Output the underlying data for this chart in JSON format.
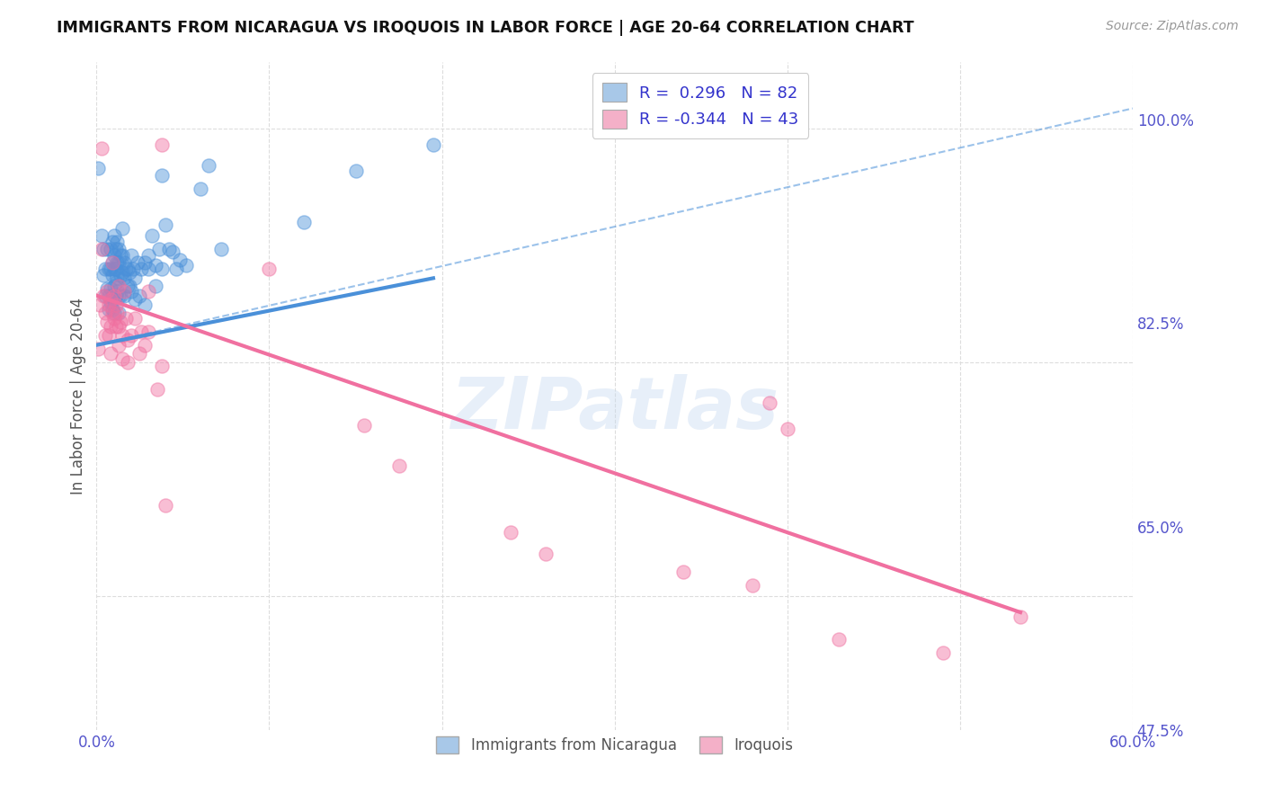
{
  "title": "IMMIGRANTS FROM NICARAGUA VS IROQUOIS IN LABOR FORCE | AGE 20-64 CORRELATION CHART",
  "source_text": "Source: ZipAtlas.com",
  "ylabel_label": "In Labor Force | Age 20-64",
  "x_min": 0.0,
  "x_max": 0.6,
  "y_min": 0.55,
  "y_max": 1.05,
  "x_ticks": [
    0.0,
    0.1,
    0.2,
    0.3,
    0.4,
    0.5,
    0.6
  ],
  "y_tick_labels_right": [
    "100.0%",
    "82.5%",
    "65.0%",
    "47.5%"
  ],
  "y_ticks_right": [
    1.0,
    0.825,
    0.65,
    0.475
  ],
  "watermark": "ZIPatlas",
  "blue_color": "#4a90d9",
  "pink_color": "#f070a0",
  "blue_scatter": [
    [
      0.001,
      0.97
    ],
    [
      0.003,
      0.92
    ],
    [
      0.004,
      0.91
    ],
    [
      0.004,
      0.89
    ],
    [
      0.005,
      0.895
    ],
    [
      0.005,
      0.875
    ],
    [
      0.006,
      0.91
    ],
    [
      0.006,
      0.88
    ],
    [
      0.007,
      0.895
    ],
    [
      0.007,
      0.875
    ],
    [
      0.007,
      0.865
    ],
    [
      0.008,
      0.91
    ],
    [
      0.008,
      0.895
    ],
    [
      0.008,
      0.88
    ],
    [
      0.008,
      0.87
    ],
    [
      0.009,
      0.915
    ],
    [
      0.009,
      0.9
    ],
    [
      0.009,
      0.89
    ],
    [
      0.009,
      0.875
    ],
    [
      0.009,
      0.865
    ],
    [
      0.01,
      0.92
    ],
    [
      0.01,
      0.905
    ],
    [
      0.01,
      0.895
    ],
    [
      0.01,
      0.882
    ],
    [
      0.01,
      0.872
    ],
    [
      0.01,
      0.862
    ],
    [
      0.011,
      0.91
    ],
    [
      0.011,
      0.895
    ],
    [
      0.011,
      0.885
    ],
    [
      0.011,
      0.875
    ],
    [
      0.012,
      0.915
    ],
    [
      0.012,
      0.9
    ],
    [
      0.012,
      0.888
    ],
    [
      0.012,
      0.878
    ],
    [
      0.013,
      0.91
    ],
    [
      0.013,
      0.9
    ],
    [
      0.013,
      0.875
    ],
    [
      0.013,
      0.862
    ],
    [
      0.014,
      0.905
    ],
    [
      0.014,
      0.89
    ],
    [
      0.014,
      0.875
    ],
    [
      0.015,
      0.925
    ],
    [
      0.015,
      0.905
    ],
    [
      0.015,
      0.892
    ],
    [
      0.016,
      0.9
    ],
    [
      0.016,
      0.888
    ],
    [
      0.016,
      0.875
    ],
    [
      0.017,
      0.895
    ],
    [
      0.018,
      0.895
    ],
    [
      0.018,
      0.882
    ],
    [
      0.019,
      0.892
    ],
    [
      0.019,
      0.882
    ],
    [
      0.02,
      0.905
    ],
    [
      0.02,
      0.878
    ],
    [
      0.021,
      0.895
    ],
    [
      0.022,
      0.888
    ],
    [
      0.022,
      0.872
    ],
    [
      0.024,
      0.9
    ],
    [
      0.025,
      0.875
    ],
    [
      0.026,
      0.895
    ],
    [
      0.028,
      0.9
    ],
    [
      0.028,
      0.868
    ],
    [
      0.03,
      0.905
    ],
    [
      0.03,
      0.895
    ],
    [
      0.032,
      0.92
    ],
    [
      0.034,
      0.898
    ],
    [
      0.034,
      0.882
    ],
    [
      0.036,
      0.91
    ],
    [
      0.038,
      0.965
    ],
    [
      0.038,
      0.895
    ],
    [
      0.04,
      0.928
    ],
    [
      0.042,
      0.91
    ],
    [
      0.044,
      0.908
    ],
    [
      0.046,
      0.895
    ],
    [
      0.048,
      0.902
    ],
    [
      0.052,
      0.898
    ],
    [
      0.06,
      0.955
    ],
    [
      0.065,
      0.972
    ],
    [
      0.072,
      0.91
    ],
    [
      0.12,
      0.93
    ],
    [
      0.15,
      0.968
    ],
    [
      0.195,
      0.988
    ]
  ],
  "pink_scatter": [
    [
      0.001,
      0.835
    ],
    [
      0.002,
      0.868
    ],
    [
      0.003,
      0.91
    ],
    [
      0.003,
      0.985
    ],
    [
      0.004,
      0.875
    ],
    [
      0.005,
      0.862
    ],
    [
      0.005,
      0.845
    ],
    [
      0.006,
      0.878
    ],
    [
      0.006,
      0.855
    ],
    [
      0.007,
      0.868
    ],
    [
      0.007,
      0.845
    ],
    [
      0.008,
      0.872
    ],
    [
      0.008,
      0.852
    ],
    [
      0.008,
      0.832
    ],
    [
      0.009,
      0.9
    ],
    [
      0.009,
      0.862
    ],
    [
      0.01,
      0.875
    ],
    [
      0.01,
      0.858
    ],
    [
      0.011,
      0.868
    ],
    [
      0.011,
      0.852
    ],
    [
      0.012,
      0.862
    ],
    [
      0.013,
      0.882
    ],
    [
      0.013,
      0.852
    ],
    [
      0.013,
      0.838
    ],
    [
      0.014,
      0.855
    ],
    [
      0.015,
      0.845
    ],
    [
      0.015,
      0.828
    ],
    [
      0.016,
      0.878
    ],
    [
      0.017,
      0.858
    ],
    [
      0.018,
      0.842
    ],
    [
      0.018,
      0.825
    ],
    [
      0.02,
      0.845
    ],
    [
      0.022,
      0.858
    ],
    [
      0.025,
      0.832
    ],
    [
      0.026,
      0.848
    ],
    [
      0.028,
      0.838
    ],
    [
      0.03,
      0.878
    ],
    [
      0.03,
      0.848
    ],
    [
      0.035,
      0.805
    ],
    [
      0.038,
      0.822
    ],
    [
      0.04,
      0.718
    ],
    [
      0.038,
      0.988
    ],
    [
      0.1,
      0.895
    ],
    [
      0.155,
      0.778
    ],
    [
      0.175,
      0.748
    ],
    [
      0.24,
      0.698
    ],
    [
      0.26,
      0.682
    ],
    [
      0.34,
      0.668
    ],
    [
      0.38,
      0.658
    ],
    [
      0.39,
      0.795
    ],
    [
      0.4,
      0.775
    ],
    [
      0.43,
      0.618
    ],
    [
      0.49,
      0.608
    ],
    [
      0.535,
      0.635
    ]
  ],
  "blue_line_solid": {
    "x": [
      0.0,
      0.195
    ],
    "y": [
      0.838,
      0.888
    ]
  },
  "blue_line_dashed": {
    "x": [
      0.0,
      0.6
    ],
    "y": [
      0.838,
      1.015
    ]
  },
  "pink_line": {
    "x": [
      0.0,
      0.535
    ],
    "y": [
      0.875,
      0.638
    ]
  },
  "bg_color": "#ffffff",
  "grid_color": "#dddddd",
  "axis_tick_color": "#5555cc",
  "legend_R_color": "#3333cc",
  "legend_box_blue": "#a8c8e8",
  "legend_box_pink": "#f4b0c8"
}
